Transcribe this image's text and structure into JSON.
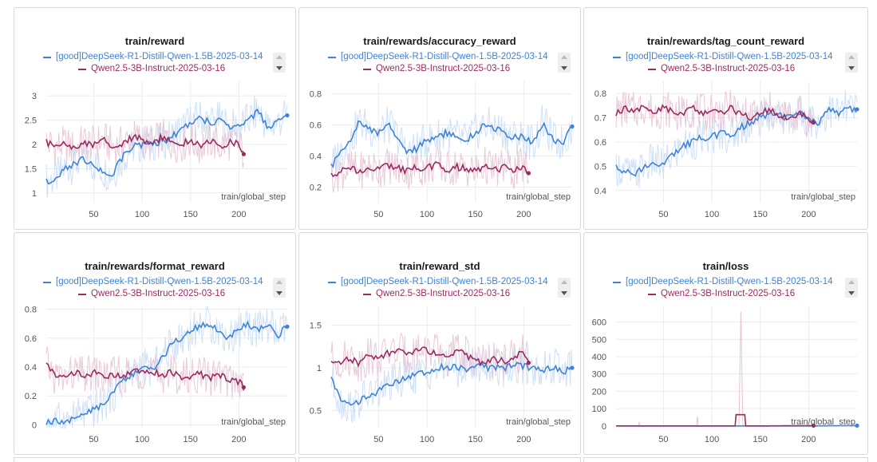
{
  "colors": {
    "blue": "#3f83d6",
    "blue_light": "#c8ddf5",
    "maroon": "#9c2a5e",
    "maroon_light": "#e7c3d4",
    "grid": "#ececec"
  },
  "legend": {
    "series_a": "[good]DeepSeek-R1-Distill-Qwen-1.5B-2025-03-14",
    "series_b": "Qwen2.5-3B-Instruct-2025-03-16"
  },
  "chart_data": [
    {
      "type": "line",
      "title": "train/reward",
      "xlabel": "train/global_step",
      "xlim": [
        1,
        250
      ],
      "xticks": [
        50,
        100,
        150,
        200
      ],
      "ylim": [
        0.8,
        3.3
      ],
      "yticks": [
        1,
        1.5,
        2,
        2.5,
        3
      ],
      "series": [
        {
          "name": "[good]DeepSeek-R1-Distill-Qwen-1.5B-2025-03-14",
          "x": [
            1,
            10,
            20,
            30,
            40,
            50,
            60,
            70,
            80,
            90,
            100,
            110,
            120,
            130,
            140,
            150,
            160,
            170,
            180,
            190,
            200,
            210,
            220,
            230,
            240,
            250
          ],
          "y": [
            1.25,
            1.3,
            1.5,
            1.6,
            1.7,
            1.6,
            1.45,
            1.4,
            1.75,
            1.95,
            2.0,
            2.05,
            2.05,
            2.15,
            2.3,
            2.45,
            2.55,
            2.45,
            2.5,
            2.35,
            2.35,
            2.5,
            2.7,
            2.35,
            2.45,
            2.6
          ]
        },
        {
          "name": "Qwen2.5-3B-Instruct-2025-03-16",
          "x": [
            1,
            10,
            20,
            30,
            40,
            50,
            60,
            70,
            80,
            90,
            100,
            110,
            120,
            130,
            140,
            150,
            160,
            170,
            180,
            190,
            200,
            205
          ],
          "y": [
            2.05,
            1.95,
            2.0,
            1.9,
            2.05,
            2.0,
            2.1,
            1.95,
            2.0,
            2.15,
            2.1,
            2.0,
            2.15,
            2.05,
            2.0,
            2.1,
            1.95,
            2.1,
            1.95,
            2.05,
            2.0,
            1.8
          ]
        }
      ]
    },
    {
      "type": "line",
      "title": "train/rewards/accuracy_reward",
      "xlabel": "train/global_step",
      "xlim": [
        1,
        250
      ],
      "xticks": [
        50,
        100,
        150,
        200
      ],
      "ylim": [
        0.1,
        0.88
      ],
      "yticks": [
        0.2,
        0.4,
        0.6,
        0.8
      ],
      "series": [
        {
          "name": "[good]DeepSeek-R1-Distill-Qwen-1.5B-2025-03-14",
          "x": [
            1,
            10,
            20,
            30,
            40,
            50,
            60,
            70,
            80,
            90,
            100,
            110,
            120,
            130,
            140,
            150,
            160,
            170,
            180,
            190,
            200,
            210,
            220,
            230,
            240,
            250
          ],
          "y": [
            0.33,
            0.42,
            0.48,
            0.62,
            0.58,
            0.55,
            0.6,
            0.52,
            0.42,
            0.45,
            0.5,
            0.52,
            0.55,
            0.52,
            0.5,
            0.55,
            0.6,
            0.58,
            0.55,
            0.52,
            0.52,
            0.48,
            0.62,
            0.5,
            0.48,
            0.59
          ]
        },
        {
          "name": "Qwen2.5-3B-Instruct-2025-03-16",
          "x": [
            1,
            10,
            20,
            30,
            40,
            50,
            60,
            70,
            80,
            90,
            100,
            110,
            120,
            130,
            140,
            150,
            160,
            170,
            180,
            190,
            200,
            205
          ],
          "y": [
            0.28,
            0.3,
            0.32,
            0.3,
            0.33,
            0.31,
            0.34,
            0.32,
            0.3,
            0.33,
            0.32,
            0.35,
            0.31,
            0.33,
            0.32,
            0.3,
            0.34,
            0.31,
            0.33,
            0.3,
            0.34,
            0.29
          ]
        }
      ]
    },
    {
      "type": "line",
      "title": "train/rewards/tag_count_reward",
      "xlabel": "train/global_step",
      "xlim": [
        1,
        250
      ],
      "xticks": [
        50,
        100,
        150,
        200
      ],
      "ylim": [
        0.35,
        0.85
      ],
      "yticks": [
        0.4,
        0.5,
        0.6,
        0.7,
        0.8
      ],
      "series": [
        {
          "name": "[good]DeepSeek-R1-Distill-Qwen-1.5B-2025-03-14",
          "x": [
            1,
            10,
            20,
            30,
            40,
            50,
            60,
            70,
            80,
            90,
            100,
            110,
            120,
            130,
            140,
            150,
            160,
            170,
            180,
            190,
            200,
            210,
            220,
            230,
            240,
            250
          ],
          "y": [
            0.5,
            0.48,
            0.46,
            0.5,
            0.52,
            0.5,
            0.55,
            0.58,
            0.6,
            0.62,
            0.62,
            0.64,
            0.63,
            0.66,
            0.68,
            0.7,
            0.72,
            0.71,
            0.7,
            0.72,
            0.7,
            0.68,
            0.73,
            0.72,
            0.74,
            0.735
          ]
        },
        {
          "name": "Qwen2.5-3B-Instruct-2025-03-16",
          "x": [
            1,
            10,
            20,
            30,
            40,
            50,
            60,
            70,
            80,
            90,
            100,
            110,
            120,
            130,
            140,
            150,
            160,
            170,
            180,
            190,
            200,
            205
          ],
          "y": [
            0.72,
            0.74,
            0.73,
            0.75,
            0.72,
            0.74,
            0.73,
            0.71,
            0.74,
            0.72,
            0.73,
            0.72,
            0.74,
            0.71,
            0.7,
            0.72,
            0.73,
            0.71,
            0.7,
            0.72,
            0.69,
            0.68
          ]
        }
      ]
    },
    {
      "type": "line",
      "title": "train/rewards/format_reward",
      "xlabel": "train/global_step",
      "xlim": [
        1,
        250
      ],
      "xticks": [
        50,
        100,
        150,
        200
      ],
      "ylim": [
        -0.02,
        0.82
      ],
      "yticks": [
        0,
        0.2,
        0.4,
        0.6,
        0.8
      ],
      "series": [
        {
          "name": "[good]DeepSeek-R1-Distill-Qwen-1.5B-2025-03-14",
          "x": [
            1,
            10,
            20,
            30,
            40,
            50,
            60,
            70,
            80,
            90,
            100,
            110,
            120,
            130,
            140,
            150,
            160,
            170,
            180,
            190,
            200,
            210,
            220,
            230,
            240,
            250
          ],
          "y": [
            0.02,
            0.03,
            0.02,
            0.05,
            0.08,
            0.1,
            0.15,
            0.22,
            0.3,
            0.35,
            0.4,
            0.38,
            0.45,
            0.55,
            0.6,
            0.65,
            0.68,
            0.7,
            0.65,
            0.6,
            0.66,
            0.7,
            0.65,
            0.7,
            0.62,
            0.68
          ]
        },
        {
          "name": "Qwen2.5-3B-Instruct-2025-03-16",
          "x": [
            1,
            10,
            20,
            30,
            40,
            50,
            60,
            70,
            80,
            90,
            100,
            110,
            120,
            130,
            140,
            150,
            160,
            170,
            180,
            190,
            200,
            205
          ],
          "y": [
            0.42,
            0.33,
            0.32,
            0.36,
            0.34,
            0.36,
            0.33,
            0.35,
            0.34,
            0.36,
            0.38,
            0.37,
            0.35,
            0.36,
            0.33,
            0.34,
            0.35,
            0.33,
            0.34,
            0.31,
            0.3,
            0.26
          ]
        }
      ]
    },
    {
      "type": "line",
      "title": "train/reward_std",
      "xlabel": "train/global_step",
      "xlim": [
        1,
        250
      ],
      "xticks": [
        50,
        100,
        150,
        200
      ],
      "ylim": [
        0.3,
        1.72
      ],
      "yticks": [
        0.5,
        1,
        1.5
      ],
      "series": [
        {
          "name": "[good]DeepSeek-R1-Distill-Qwen-1.5B-2025-03-14",
          "x": [
            1,
            10,
            20,
            30,
            40,
            50,
            60,
            70,
            80,
            90,
            100,
            110,
            120,
            130,
            140,
            150,
            160,
            170,
            180,
            190,
            200,
            210,
            220,
            230,
            240,
            250
          ],
          "y": [
            0.88,
            0.62,
            0.55,
            0.6,
            0.68,
            0.72,
            0.8,
            0.85,
            0.9,
            0.92,
            0.95,
            1.0,
            1.02,
            1.0,
            0.98,
            1.05,
            1.0,
            1.02,
            0.98,
            1.05,
            1.02,
            1.0,
            0.98,
            1.02,
            0.95,
            1.0
          ]
        },
        {
          "name": "Qwen2.5-3B-Instruct-2025-03-16",
          "x": [
            1,
            10,
            20,
            30,
            40,
            50,
            60,
            70,
            80,
            90,
            100,
            110,
            120,
            130,
            140,
            150,
            160,
            170,
            180,
            190,
            200,
            205
          ],
          "y": [
            1.1,
            1.08,
            1.12,
            1.05,
            1.15,
            1.1,
            1.18,
            1.2,
            1.15,
            1.22,
            1.2,
            1.18,
            1.12,
            1.2,
            1.15,
            1.1,
            1.05,
            1.1,
            1.08,
            1.12,
            1.2,
            1.06
          ]
        }
      ]
    },
    {
      "type": "line",
      "title": "train/loss",
      "xlabel": "train/global_step",
      "xlim": [
        1,
        250
      ],
      "xticks": [
        50,
        100,
        150,
        200
      ],
      "ylim": [
        -10,
        690
      ],
      "yticks": [
        0,
        100,
        200,
        300,
        400,
        500,
        600
      ],
      "series": [
        {
          "name": "[good]DeepSeek-R1-Distill-Qwen-1.5B-2025-03-14",
          "x": [
            1,
            50,
            100,
            150,
            200,
            250
          ],
          "y": [
            0,
            0,
            0,
            0,
            0,
            2
          ]
        },
        {
          "name": "Qwen2.5-3B-Instruct-2025-03-16",
          "x": [
            1,
            50,
            100,
            124,
            125,
            134,
            135,
            150,
            205
          ],
          "y": [
            0,
            0,
            0,
            0,
            65,
            65,
            0,
            0,
            2
          ]
        }
      ]
    }
  ]
}
